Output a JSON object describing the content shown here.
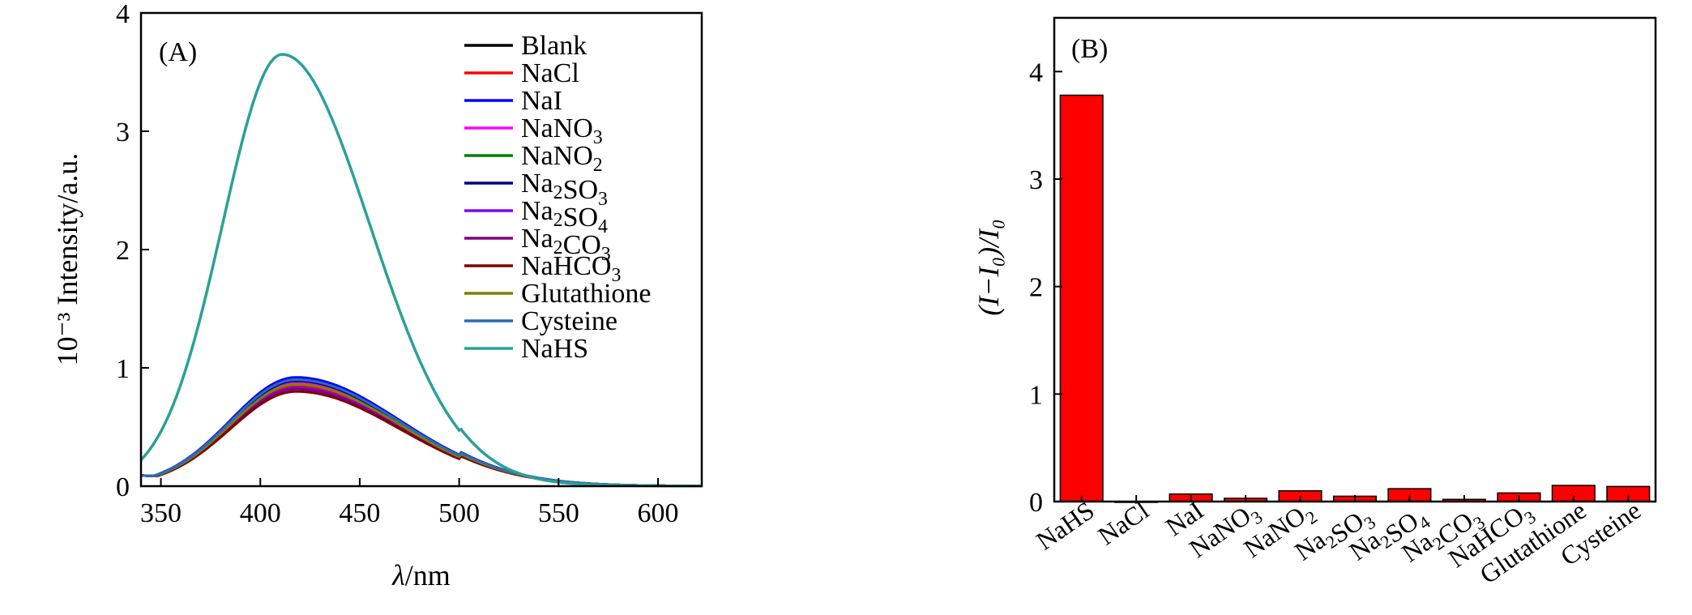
{
  "panel_a": {
    "panel_label": "(A)",
    "ylabel": "10⁻³ Intensity/a.u.",
    "xlabel_italic": "λ",
    "xlabel_rest": "/nm"
  },
  "panel_b": {
    "panel_label": "(B)",
    "ylabel": "(I−I₀)/I₀"
  },
  "chart_data": [
    {
      "type": "line",
      "title": "(A)",
      "xlabel": "λ/nm",
      "ylabel": "10⁻³ Intensity/a.u.",
      "xlim": [
        340,
        622
      ],
      "ylim": [
        0,
        4
      ],
      "xticks": [
        350,
        400,
        450,
        500,
        550,
        600
      ],
      "yticks": [
        0,
        1,
        2,
        3,
        4
      ],
      "legend_position": "top-right",
      "series": [
        {
          "name": "Blank",
          "color": "#000000",
          "peak_x": 418,
          "peak": 0.84
        },
        {
          "name": "NaCl",
          "color": "#ff0000",
          "peak_x": 418,
          "peak": 0.85
        },
        {
          "name": "NaI",
          "color": "#0000ff",
          "peak_x": 418,
          "peak": 0.92
        },
        {
          "name": "NaNO₃",
          "color": "#ff00ff",
          "peak_x": 418,
          "peak": 0.88
        },
        {
          "name": "NaNO₂",
          "color": "#008000",
          "peak_x": 418,
          "peak": 0.86
        },
        {
          "name": "Na₂SO₃",
          "color": "#000080",
          "peak_x": 418,
          "peak": 0.89
        },
        {
          "name": "Na₂SO₄",
          "color": "#8000ff",
          "peak_x": 418,
          "peak": 0.83
        },
        {
          "name": "Na₂CO₃",
          "color": "#800080",
          "peak_x": 418,
          "peak": 0.82
        },
        {
          "name": "NaHCO₃",
          "color": "#800000",
          "peak_x": 418,
          "peak": 0.8
        },
        {
          "name": "Glutathione",
          "color": "#808000",
          "peak_x": 418,
          "peak": 0.86
        },
        {
          "name": "Cysteine",
          "color": "#2a6cb5",
          "peak_x": 418,
          "peak": 0.9
        },
        {
          "name": "NaHS",
          "color": "#2aa198",
          "peak_x": 411,
          "peak": 3.65
        }
      ]
    },
    {
      "type": "bar",
      "title": "(B)",
      "xlabel": "",
      "ylabel": "(I−I₀)/I₀",
      "ylim": [
        0,
        4.5
      ],
      "yticks": [
        0,
        1,
        2,
        3,
        4
      ],
      "bar_color": "#ff0000",
      "categories": [
        "NaHS",
        "NaCl",
        "NaI",
        "NaNO₃",
        "NaNO₂",
        "Na₂SO₃",
        "Na₂SO₄",
        "Na₂CO₃",
        "NaHCO₃",
        "Glutathione",
        "Cysteine"
      ],
      "values": [
        3.78,
        0.0,
        0.07,
        0.03,
        0.1,
        0.05,
        0.12,
        0.02,
        0.08,
        0.15,
        0.14
      ]
    }
  ]
}
